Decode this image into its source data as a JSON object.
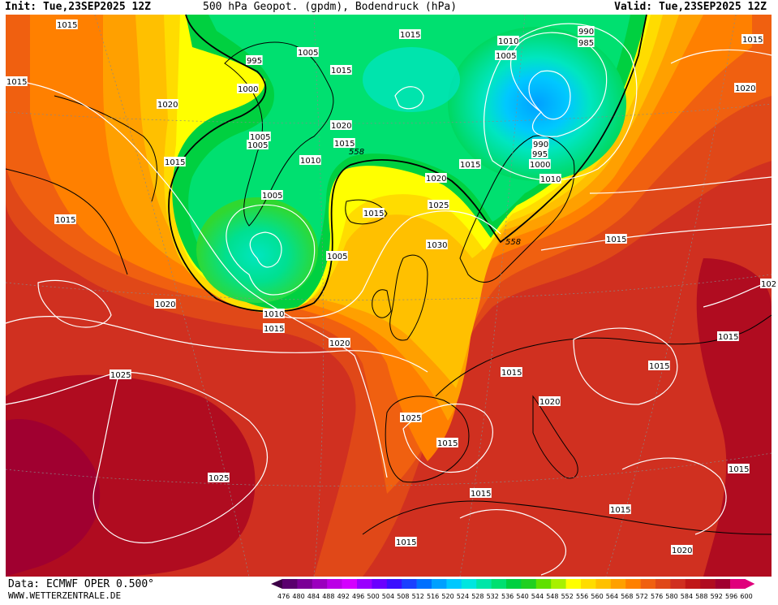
{
  "header": {
    "init": "Init: Tue,23SEP2025 12Z",
    "title": "500 hPa Geopot. (gpdm), Bodendruck (hPa)",
    "valid": "Valid: Tue,23SEP2025 12Z"
  },
  "footer": {
    "source": "Data: ECMWF OPER 0.500°",
    "site": "WWW.WETTERZENTRALE.DE"
  },
  "legend": {
    "values": [
      "476",
      "480",
      "484",
      "488",
      "492",
      "496",
      "500",
      "504",
      "508",
      "512",
      "516",
      "520",
      "524",
      "528",
      "532",
      "536",
      "540",
      "544",
      "548",
      "552",
      "556",
      "560",
      "564",
      "568",
      "572",
      "576",
      "580",
      "584",
      "588",
      "592",
      "596",
      "600"
    ],
    "colors": [
      "#3c0046",
      "#5a006e",
      "#7a0096",
      "#9b00be",
      "#bb00e6",
      "#d400ff",
      "#9a00ff",
      "#6a00ff",
      "#3a10ff",
      "#1a40ff",
      "#0070ff",
      "#00a0ff",
      "#00c8ff",
      "#00e6e0",
      "#00e6a8",
      "#00e070",
      "#00d040",
      "#20d020",
      "#60e000",
      "#a8f000",
      "#ffff00",
      "#ffdc00",
      "#ffc000",
      "#ffa000",
      "#ff8000",
      "#f06010",
      "#e04818",
      "#d03020",
      "#c01818",
      "#b00c20",
      "#a00030",
      "#e0007c"
    ]
  },
  "isobar_labels": [
    {
      "text": "1015"
    },
    {
      "text": "1015"
    },
    {
      "text": "995"
    },
    {
      "text": "1005"
    },
    {
      "text": "1015"
    },
    {
      "text": "1010"
    },
    {
      "text": "990"
    },
    {
      "text": "985"
    },
    {
      "text": "1005"
    },
    {
      "text": "1015"
    },
    {
      "text": "1000"
    },
    {
      "text": "1020"
    },
    {
      "text": "1005"
    },
    {
      "text": "1005"
    },
    {
      "text": "1020"
    },
    {
      "text": "1015"
    },
    {
      "text": "1015"
    },
    {
      "text": "1010"
    },
    {
      "text": "1015"
    },
    {
      "text": "990"
    },
    {
      "text": "995"
    },
    {
      "text": "1000"
    },
    {
      "text": "1015"
    },
    {
      "text": "1020"
    },
    {
      "text": "1005"
    },
    {
      "text": "1010"
    },
    {
      "text": "1015"
    },
    {
      "text": "1025"
    },
    {
      "text": "1015"
    },
    {
      "text": "1030"
    },
    {
      "text": "1015"
    },
    {
      "text": "1005"
    },
    {
      "text": "102"
    },
    {
      "text": "1020"
    },
    {
      "text": "1010"
    },
    {
      "text": "1015"
    },
    {
      "text": "1020"
    },
    {
      "text": "1020"
    },
    {
      "text": "1015"
    },
    {
      "text": "1015"
    },
    {
      "text": "1025"
    },
    {
      "text": "1015"
    },
    {
      "text": "1025"
    },
    {
      "text": "1020"
    },
    {
      "text": "1025"
    },
    {
      "text": "1015"
    },
    {
      "text": "1015"
    },
    {
      "text": "1015"
    },
    {
      "text": "1015"
    },
    {
      "text": "1015"
    },
    {
      "text": "1020"
    }
  ],
  "contour_558_labels": [
    "558",
    "558"
  ]
}
